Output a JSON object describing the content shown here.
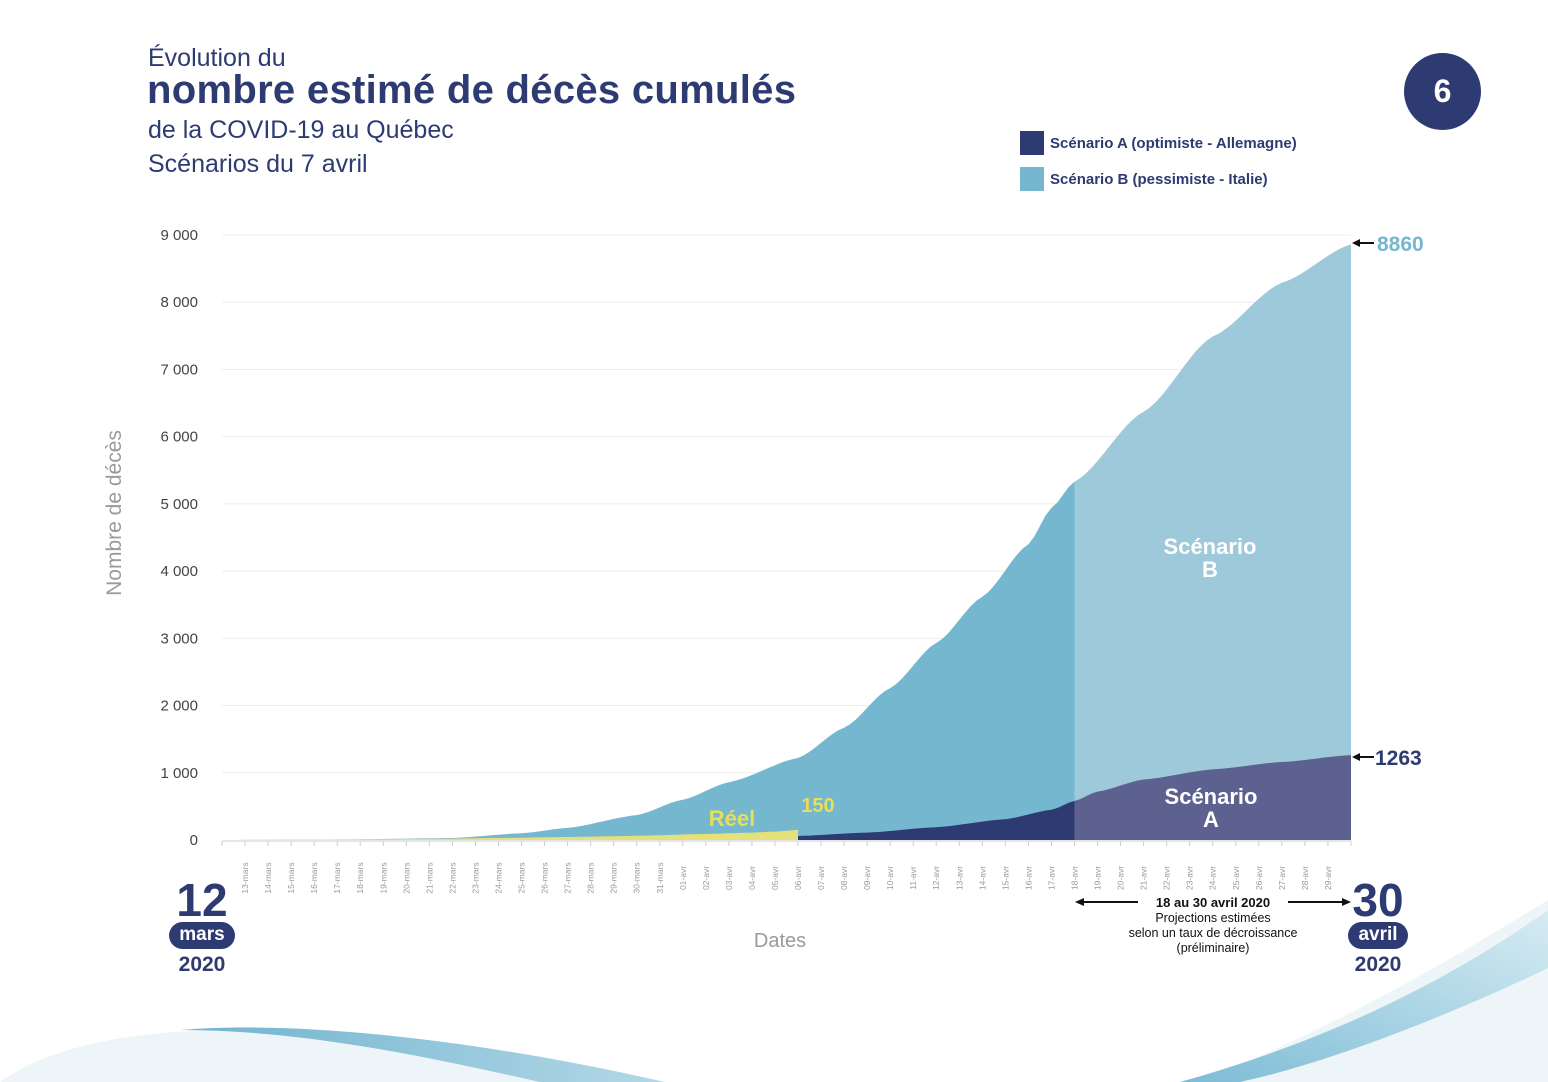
{
  "header": {
    "line1": "Évolution du",
    "title": "nombre estimé de décès cumulés",
    "line3": "de la COVID-19 au Québec",
    "line4": "Scénarios du 7 avril",
    "badge": "6"
  },
  "legend": [
    {
      "label": "Scénario A (optimiste - Allemagne)",
      "color": "#2d3b72"
    },
    {
      "label": "Scénario B (pessimiste - Italie)",
      "color": "#74b7cf"
    }
  ],
  "date_start": {
    "day": "12",
    "month": "mars",
    "year": "2020"
  },
  "date_end": {
    "day": "30",
    "month": "avril",
    "year": "2020"
  },
  "projection_note": {
    "title": "18 au 30 avril 2020",
    "line1": "Projections estimées",
    "line2": "selon un taux de décroissance",
    "line3": "(préliminaire)"
  },
  "colors": {
    "scenario_a": "#2d3b72",
    "scenario_a_projection": "#5c6190",
    "scenario_b": "#74b7cf",
    "scenario_b_projection": "#9dc9da",
    "reel": "#e4e07a",
    "reel_label": "#e8de5a",
    "grid": "#eeeeee"
  },
  "chart_data": {
    "type": "area",
    "title": "Évolution du nombre estimé de décès cumulés de la COVID-19 au Québec — Scénarios du 7 avril",
    "xlabel": "Dates",
    "ylabel": "Nombre de décès",
    "ylim": [
      0,
      9000
    ],
    "yticks": [
      0,
      1000,
      2000,
      3000,
      4000,
      5000,
      6000,
      7000,
      8000,
      9000
    ],
    "ytick_labels": [
      "0",
      "1 000",
      "2 000",
      "3 000",
      "4 000",
      "5 000",
      "6 000",
      "7 000",
      "8 000",
      "9 000"
    ],
    "grid": true,
    "legend_position": "top-right",
    "x_start": "12-mars",
    "x_end": "30-avr",
    "x_tick_labels": [
      "13-mars",
      "14-mars",
      "15-mars",
      "16-mars",
      "17-mars",
      "18-mars",
      "19-mars",
      "20-mars",
      "21-mars",
      "22-mars",
      "23-mars",
      "24-mars",
      "25-mars",
      "26-mars",
      "27-mars",
      "28-mars",
      "29-mars",
      "30-mars",
      "31-mars",
      "01-avr",
      "02-avr",
      "03-avr",
      "04-avr",
      "05-avr",
      "06-avr",
      "07-avr",
      "08-avr",
      "09-avr",
      "10-avr",
      "11-avr",
      "12-avr",
      "13-avr",
      "14-avr",
      "15-avr",
      "16-avr",
      "17-avr",
      "18-avr",
      "19-avr",
      "20-avr",
      "21-avr",
      "22-avr",
      "23-avr",
      "24-avr",
      "25-avr",
      "26-avr",
      "27-avr",
      "28-avr",
      "29-avr"
    ],
    "projection_start_index": 37,
    "series": [
      {
        "name": "Scénario B (pessimiste - Italie)",
        "points": [
          [
            0,
            0
          ],
          [
            5,
            5
          ],
          [
            10,
            30
          ],
          [
            13,
            100
          ],
          [
            15,
            180
          ],
          [
            18,
            370
          ],
          [
            20,
            600
          ],
          [
            22,
            860
          ],
          [
            25,
            1220
          ],
          [
            27,
            1670
          ],
          [
            29,
            2260
          ],
          [
            31,
            2930
          ],
          [
            33,
            3620
          ],
          [
            35,
            4400
          ],
          [
            36,
            4940
          ],
          [
            37,
            5330
          ],
          [
            40,
            6370
          ],
          [
            43,
            7490
          ],
          [
            46,
            8290
          ],
          [
            49,
            8860
          ]
        ],
        "end_label": "8860"
      },
      {
        "name": "Scénario A (optimiste - Allemagne)",
        "points": [
          [
            25,
            60
          ],
          [
            28,
            110
          ],
          [
            31,
            190
          ],
          [
            34,
            310
          ],
          [
            36,
            450
          ],
          [
            37,
            580
          ],
          [
            38,
            720
          ],
          [
            40,
            900
          ],
          [
            43,
            1050
          ],
          [
            46,
            1160
          ],
          [
            49,
            1263
          ]
        ],
        "end_label": "1263"
      },
      {
        "name": "Réel",
        "points": [
          [
            0,
            0
          ],
          [
            3,
            4
          ],
          [
            6,
            10
          ],
          [
            9,
            18
          ],
          [
            12,
            30
          ],
          [
            15,
            45
          ],
          [
            18,
            62
          ],
          [
            21,
            90
          ],
          [
            23,
            110
          ],
          [
            24,
            125
          ],
          [
            25,
            150
          ]
        ],
        "end_label": "150"
      }
    ],
    "annotations": [
      {
        "text": "Réel",
        "series": "Réel"
      },
      {
        "text": "150",
        "series": "Réel"
      },
      {
        "text": "Scénario",
        "text2": "A",
        "series": "Scénario A"
      },
      {
        "text": "Scénario",
        "text2": "B",
        "series": "Scénario B"
      },
      {
        "text": "8860"
      },
      {
        "text": "1263"
      }
    ]
  }
}
